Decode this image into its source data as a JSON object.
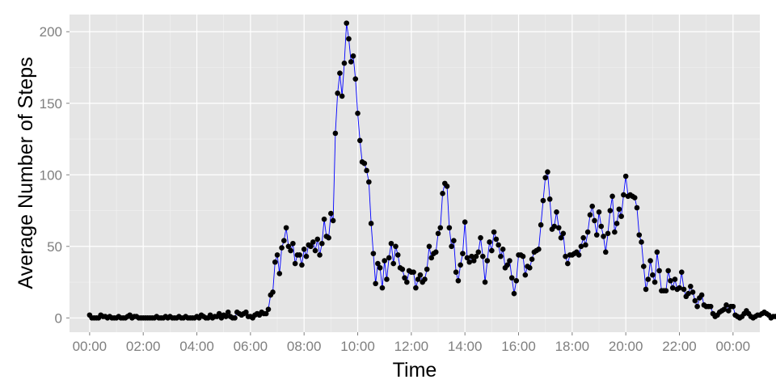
{
  "chart_data": {
    "type": "line",
    "xlabel": "Time",
    "ylabel": "Average Number of Steps",
    "xlim": [
      -45,
      1500
    ],
    "ylim": [
      -10,
      212
    ],
    "x_ticks": [
      0,
      120,
      240,
      360,
      480,
      600,
      720,
      840,
      960,
      1080,
      1200,
      1320,
      1440
    ],
    "x_tick_labels": [
      "00:00",
      "02:00",
      "04:00",
      "06:00",
      "08:00",
      "10:00",
      "12:00",
      "14:00",
      "16:00",
      "18:00",
      "20:00",
      "22:00",
      "00:00"
    ],
    "y_ticks": [
      0,
      50,
      100,
      150,
      200
    ],
    "y_tick_labels": [
      "0",
      "50",
      "100",
      "150",
      "200"
    ],
    "grid": true,
    "colors": {
      "panel_background": "#E5E5E5",
      "grid_major": "#FFFFFF",
      "grid_minor": "#F2F2F2",
      "line": "#0000FF",
      "point": "#000000",
      "tick_label": "#7F7F7F"
    },
    "interval_minutes": 5,
    "series": [
      {
        "values": [
          2,
          0,
          0,
          0,
          0,
          2,
          1,
          1,
          0,
          1,
          0,
          0,
          0,
          1,
          0,
          0,
          0,
          1,
          2,
          0,
          1,
          1,
          0,
          0,
          0,
          0,
          0,
          0,
          0,
          0,
          1,
          0,
          0,
          0,
          1,
          0,
          1,
          0,
          0,
          0,
          1,
          0,
          0,
          1,
          0,
          0,
          0,
          0,
          1,
          0,
          2,
          1,
          0,
          0,
          2,
          0,
          1,
          1,
          3,
          0,
          2,
          1,
          4,
          1,
          0,
          0,
          4,
          3,
          2,
          3,
          4,
          1,
          1,
          0,
          2,
          3,
          2,
          4,
          3,
          3,
          6,
          16,
          18,
          39,
          44,
          31,
          49,
          54,
          63,
          50,
          47,
          52,
          38,
          44,
          44,
          37,
          48,
          43,
          51,
          50,
          53,
          47,
          55,
          44,
          52,
          69,
          57,
          56,
          73,
          68,
          129,
          157,
          171,
          155,
          178,
          206,
          195,
          179,
          183,
          167,
          143,
          124,
          109,
          108,
          103,
          95,
          66,
          45,
          24,
          38,
          35,
          21,
          40,
          27,
          42,
          52,
          38,
          50,
          44,
          35,
          34,
          28,
          25,
          33,
          32,
          32,
          21,
          27,
          30,
          25,
          27,
          34,
          50,
          42,
          45,
          46,
          59,
          63,
          87,
          94,
          92,
          63,
          50,
          54,
          32,
          26,
          37,
          45,
          67,
          42,
          39,
          43,
          40,
          43,
          46,
          56,
          43,
          25,
          40,
          53,
          47,
          60,
          55,
          51,
          43,
          48,
          35,
          37,
          40,
          28,
          17,
          26,
          44,
          44,
          43,
          30,
          36,
          35,
          41,
          46,
          47,
          48,
          65,
          82,
          98,
          102,
          83,
          62,
          64,
          74,
          63,
          56,
          59,
          43,
          38,
          44,
          44,
          45,
          46,
          44,
          50,
          56,
          51,
          60,
          72,
          78,
          68,
          58,
          74,
          64,
          57,
          46,
          59,
          75,
          85,
          60,
          66,
          76,
          71,
          86,
          99,
          85,
          86,
          85,
          84,
          77,
          58,
          53,
          36,
          20,
          27,
          40,
          30,
          25,
          46,
          33,
          19,
          19,
          19,
          33,
          26,
          21,
          27,
          20,
          21,
          32,
          20,
          15,
          17,
          22,
          18,
          12,
          8,
          14,
          16,
          9,
          8,
          8,
          8,
          3,
          1,
          2,
          4,
          5,
          6,
          9,
          5,
          8,
          8,
          2,
          1,
          0,
          1,
          3,
          5,
          3,
          1,
          0,
          1,
          2,
          2,
          3,
          4,
          3,
          2,
          0,
          1,
          1
        ]
      }
    ]
  }
}
